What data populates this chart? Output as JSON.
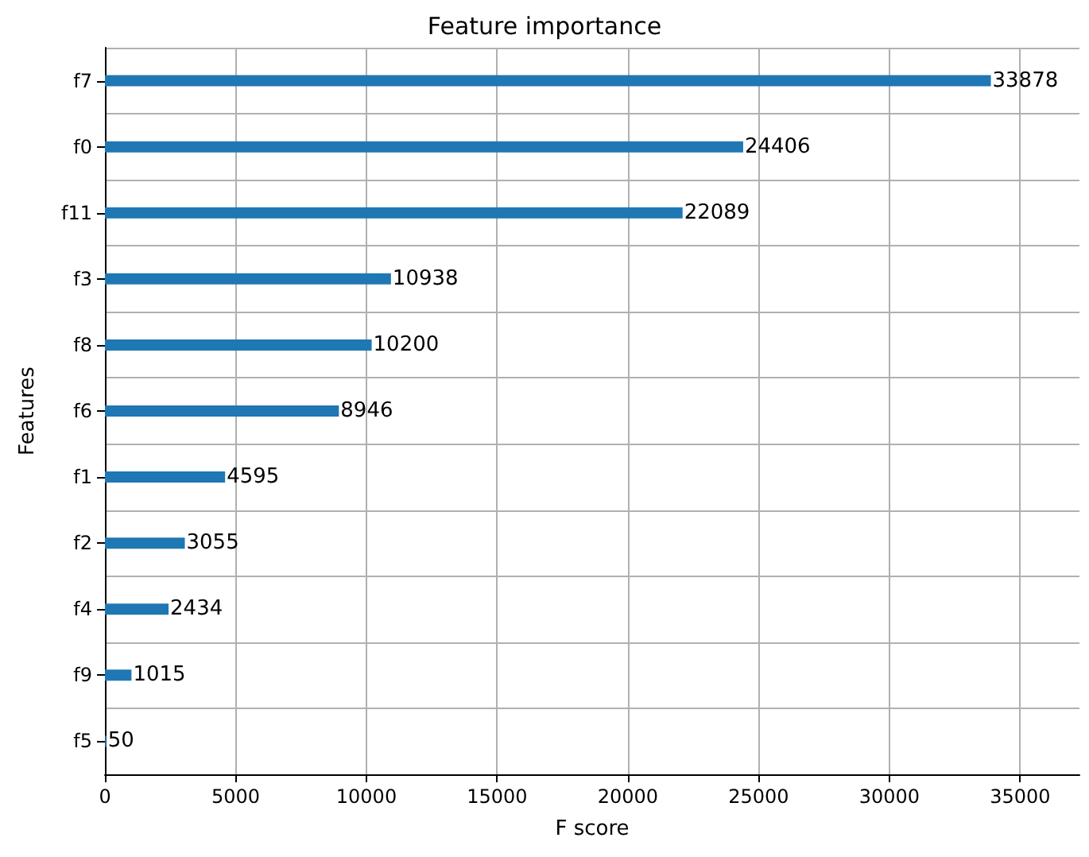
{
  "chart_data": {
    "type": "bar",
    "orientation": "horizontal",
    "title": "Feature importance",
    "xlabel": "F score",
    "ylabel": "Features",
    "categories": [
      "f7",
      "f0",
      "f11",
      "f3",
      "f8",
      "f6",
      "f1",
      "f2",
      "f4",
      "f9",
      "f5"
    ],
    "values": [
      33878,
      24406,
      22089,
      10938,
      10200,
      8946,
      4595,
      3055,
      2434,
      1015,
      50
    ],
    "color": "#1f77b4",
    "xlim": [
      0,
      37266
    ],
    "xticks": [
      0,
      5000,
      10000,
      15000,
      20000,
      25000,
      30000,
      35000
    ],
    "grid": true,
    "data_labels": true
  }
}
